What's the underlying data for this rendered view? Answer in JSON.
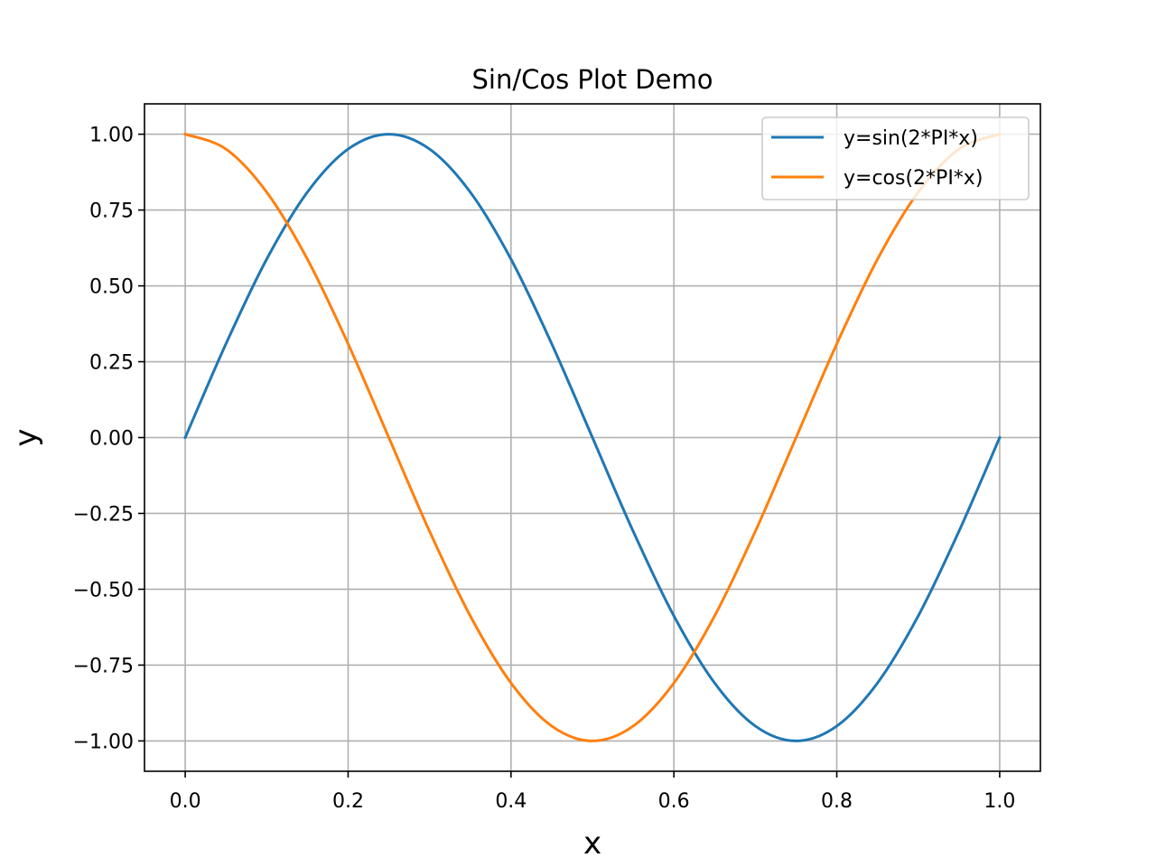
{
  "chart_data": {
    "type": "line",
    "title": "Sin/Cos Plot Demo",
    "xlabel": "x",
    "ylabel": "y",
    "xlim": [
      -0.05,
      1.05
    ],
    "ylim": [
      -1.1,
      1.1
    ],
    "xticks": [
      0.0,
      0.2,
      0.4,
      0.6,
      0.8,
      1.0
    ],
    "xtick_labels": [
      "0.0",
      "0.2",
      "0.4",
      "0.6",
      "0.8",
      "1.0"
    ],
    "yticks": [
      1.0,
      0.75,
      0.5,
      0.25,
      0.0,
      -0.25,
      -0.5,
      -0.75,
      -1.0
    ],
    "ytick_labels": [
      "1.00",
      "0.75",
      "0.50",
      "0.25",
      "0.00",
      "−0.25",
      "−0.50",
      "−0.75",
      "−1.00"
    ],
    "grid": true,
    "legend_position": "top-right",
    "x": [
      0.0,
      0.05,
      0.1,
      0.15,
      0.2,
      0.25,
      0.3,
      0.35,
      0.4,
      0.45,
      0.5,
      0.55,
      0.6,
      0.65,
      0.7,
      0.75,
      0.8,
      0.85,
      0.9,
      0.95,
      1.0
    ],
    "series": [
      {
        "name": "y=sin(2*PI*x)",
        "color": "#1f77b4",
        "values": [
          0.0,
          0.309,
          0.588,
          0.809,
          0.951,
          1.0,
          0.951,
          0.809,
          0.588,
          0.309,
          0.0,
          -0.309,
          -0.588,
          -0.809,
          -0.951,
          -1.0,
          -0.951,
          -0.809,
          -0.588,
          -0.309,
          0.0
        ]
      },
      {
        "name": "y=cos(2*PI*x)",
        "color": "#ff7f0e",
        "values": [
          1.0,
          0.951,
          0.809,
          0.588,
          0.309,
          0.0,
          -0.309,
          -0.588,
          -0.809,
          -0.951,
          -1.0,
          -0.951,
          -0.809,
          -0.588,
          -0.309,
          0.0,
          0.309,
          0.588,
          0.809,
          0.951,
          1.0
        ]
      }
    ]
  }
}
